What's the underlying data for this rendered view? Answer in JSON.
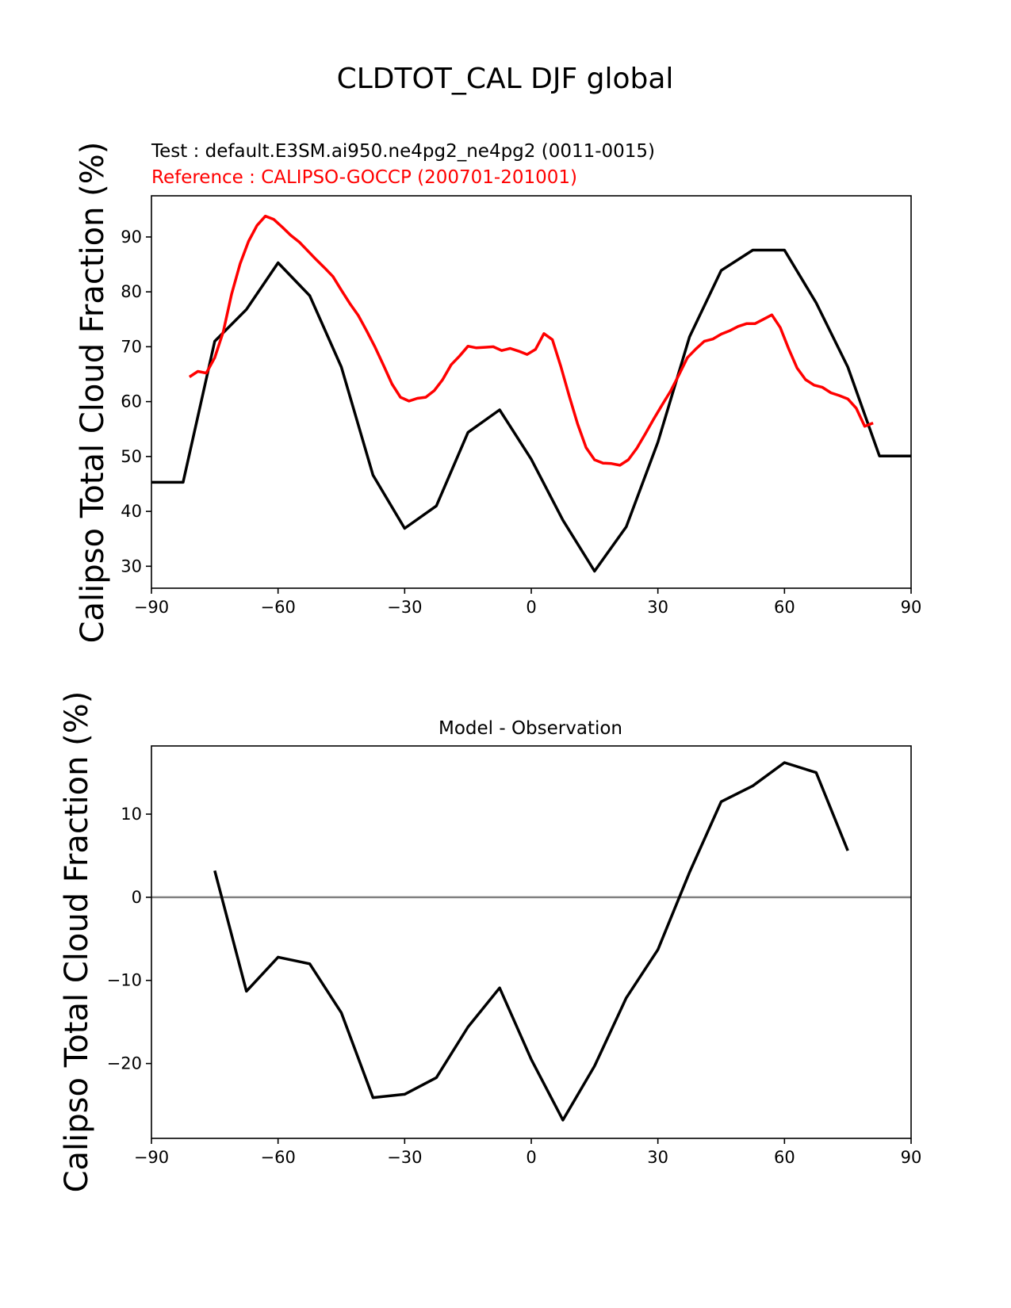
{
  "title": "CLDTOT_CAL DJF global",
  "colors": {
    "test": "#000000",
    "reference": "#ff0000",
    "zero_line": "#808080"
  },
  "chart_data": [
    {
      "type": "line",
      "title": "",
      "test_label": "Test : default.E3SM.ai950.ne4pg2_ne4pg2 (0011-0015)",
      "reference_label": "Reference : CALIPSO-GOCCP (200701-201001)",
      "ylabel": "Calipso Total Cloud Fraction (%)",
      "xlabel": "",
      "xlim": [
        -90,
        90
      ],
      "ylim": [
        26,
        97.5
      ],
      "xticks": [
        -90,
        -60,
        -30,
        0,
        30,
        60,
        90
      ],
      "xtick_labels": [
        "−90",
        "−60",
        "−30",
        "0",
        "30",
        "60",
        "90"
      ],
      "yticks": [
        30,
        40,
        50,
        60,
        70,
        80,
        90
      ],
      "ytick_labels": [
        "30",
        "40",
        "50",
        "60",
        "70",
        "80",
        "90"
      ],
      "series": [
        {
          "role": "test",
          "x": [
            -90,
            -82.5,
            -75,
            -67.5,
            -60,
            -52.5,
            -45,
            -37.5,
            -30,
            -22.5,
            -15,
            -7.5,
            0,
            7.5,
            15,
            22.5,
            30,
            37.5,
            45,
            52.5,
            60,
            67.5,
            75,
            82.5,
            90
          ],
          "values": [
            45.3,
            45.3,
            71.0,
            76.8,
            85.3,
            79.3,
            66.3,
            46.6,
            36.9,
            41.0,
            54.4,
            58.5,
            49.5,
            38.4,
            29.1,
            37.2,
            52.6,
            71.8,
            83.9,
            87.6,
            87.6,
            78.0,
            66.3,
            50.1,
            50.1
          ]
        },
        {
          "role": "reference",
          "x": [
            -81,
            -79,
            -77,
            -75,
            -73,
            -71,
            -69,
            -67,
            -65,
            -63,
            -61,
            -59,
            -57,
            -55,
            -53,
            -51,
            -49,
            -47,
            -45,
            -43,
            -41,
            -39,
            -37,
            -35,
            -33,
            -31,
            -29,
            -27,
            -25,
            -23,
            -21,
            -19,
            -17,
            -15,
            -13,
            -11,
            -9,
            -7,
            -5,
            -3,
            -1,
            1,
            3,
            5,
            7,
            9,
            11,
            13,
            15,
            17,
            19,
            21,
            23,
            25,
            27,
            29,
            31,
            33,
            35,
            37,
            39,
            41,
            43,
            45,
            47,
            49,
            51,
            53,
            55,
            57,
            59,
            61,
            63,
            65,
            67,
            69,
            71,
            73,
            75,
            77,
            79,
            81
          ],
          "values": [
            64.5,
            65.5,
            65.2,
            68.0,
            72.7,
            79.6,
            85.1,
            89.2,
            92.1,
            93.8,
            93.2,
            91.8,
            90.3,
            89.1,
            87.5,
            85.9,
            84.4,
            82.8,
            80.3,
            77.9,
            75.7,
            72.9,
            69.9,
            66.6,
            63.2,
            60.8,
            60.1,
            60.6,
            60.8,
            62.0,
            64.0,
            66.7,
            68.3,
            70.1,
            69.8,
            69.9,
            70.0,
            69.3,
            69.7,
            69.2,
            68.6,
            69.5,
            72.4,
            71.3,
            66.4,
            61.0,
            55.9,
            51.6,
            49.4,
            48.8,
            48.7,
            48.4,
            49.4,
            51.5,
            54.1,
            56.8,
            59.4,
            61.9,
            64.9,
            68.0,
            69.6,
            71.0,
            71.4,
            72.3,
            72.9,
            73.7,
            74.2,
            74.2,
            75.0,
            75.8,
            73.5,
            69.6,
            66.1,
            64.0,
            63.0,
            62.6,
            61.6,
            61.1,
            60.5,
            58.8,
            55.5,
            56.1
          ]
        }
      ]
    },
    {
      "type": "line",
      "title": "Model - Observation",
      "ylabel": "Calipso Total Cloud Fraction (%)",
      "xlabel": "",
      "xlim": [
        -90,
        90
      ],
      "ylim": [
        -29,
        18.2
      ],
      "xticks": [
        -90,
        -60,
        -30,
        0,
        30,
        60,
        90
      ],
      "xtick_labels": [
        "−90",
        "−60",
        "−30",
        "0",
        "30",
        "60",
        "90"
      ],
      "yticks": [
        -20,
        -10,
        0,
        10
      ],
      "ytick_labels": [
        "−20",
        "−10",
        "0",
        "10"
      ],
      "zero_line": true,
      "series": [
        {
          "role": "test",
          "x": [
            -75,
            -67.5,
            -60,
            -52.5,
            -45,
            -37.5,
            -30,
            -22.5,
            -15,
            -7.5,
            0,
            7.5,
            15,
            22.5,
            30,
            37.5,
            45,
            52.5,
            60,
            67.5,
            75
          ],
          "values": [
            3.2,
            -11.3,
            -7.2,
            -8.0,
            -13.9,
            -24.1,
            -23.7,
            -21.7,
            -15.6,
            -10.9,
            -19.5,
            -26.8,
            -20.3,
            -12.1,
            -6.3,
            3.0,
            11.5,
            13.4,
            16.2,
            15.0,
            5.6
          ]
        }
      ]
    }
  ]
}
